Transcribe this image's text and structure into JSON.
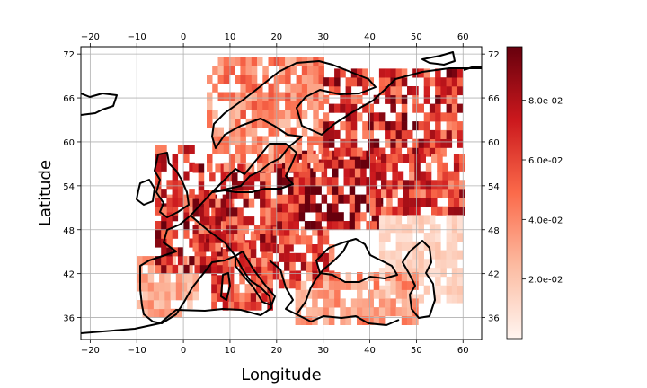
{
  "chart_data": {
    "type": "heatmap",
    "title": "",
    "xlabel": "Longitude",
    "ylabel": "Latitude",
    "xlim": [
      -22,
      64
    ],
    "ylim": [
      33,
      73
    ],
    "x_ticks": [
      -20,
      -10,
      0,
      10,
      20,
      30,
      40,
      50,
      60
    ],
    "x_tick_labels": [
      "−20",
      "−10",
      "0",
      "10",
      "20",
      "30",
      "40",
      "50",
      "60"
    ],
    "y_ticks": [
      36,
      42,
      48,
      54,
      60,
      66,
      72
    ],
    "y_tick_labels": [
      "36",
      "42",
      "48",
      "54",
      "60",
      "66",
      "72"
    ],
    "grid": true,
    "colormap": "Reds",
    "colorbar": {
      "min": 0.0,
      "max": 0.098,
      "ticks": [
        0.02,
        0.04,
        0.06,
        0.08
      ],
      "tick_labels": [
        "2.0e-02",
        "4.0e-02",
        "6.0e-02",
        "8.0e-02"
      ],
      "colors": [
        "#fff5f0",
        "#fcbba1",
        "#fb6a4a",
        "#cb181d",
        "#67000d"
      ]
    },
    "regions": [
      {
        "lon": [
          -10,
          3
        ],
        "lat": [
          36,
          44
        ],
        "value": 0.03
      },
      {
        "lon": [
          -6,
          10
        ],
        "lat": [
          42,
          52
        ],
        "value": 0.068
      },
      {
        "lon": [
          -6,
          2
        ],
        "lat": [
          50,
          59
        ],
        "value": 0.06
      },
      {
        "lon": [
          6,
          19
        ],
        "lat": [
          37,
          47
        ],
        "value": 0.058
      },
      {
        "lon": [
          2,
          24
        ],
        "lat": [
          45,
          56
        ],
        "value": 0.068
      },
      {
        "lon": [
          18,
          32
        ],
        "lat": [
          40,
          48
        ],
        "value": 0.06
      },
      {
        "lon": [
          20,
          42
        ],
        "lat": [
          48,
          58
        ],
        "value": 0.078
      },
      {
        "lon": [
          5,
          30
        ],
        "lat": [
          56,
          71
        ],
        "value": 0.04
      },
      {
        "lon": [
          30,
          60
        ],
        "lat": [
          58,
          69
        ],
        "value": 0.068
      },
      {
        "lon": [
          40,
          60
        ],
        "lat": [
          50,
          58
        ],
        "value": 0.062
      },
      {
        "lon": [
          42,
          60
        ],
        "lat": [
          38,
          50
        ],
        "value": 0.015
      },
      {
        "lon": [
          24,
          50
        ],
        "lat": [
          35,
          42
        ],
        "value": 0.035
      }
    ]
  }
}
